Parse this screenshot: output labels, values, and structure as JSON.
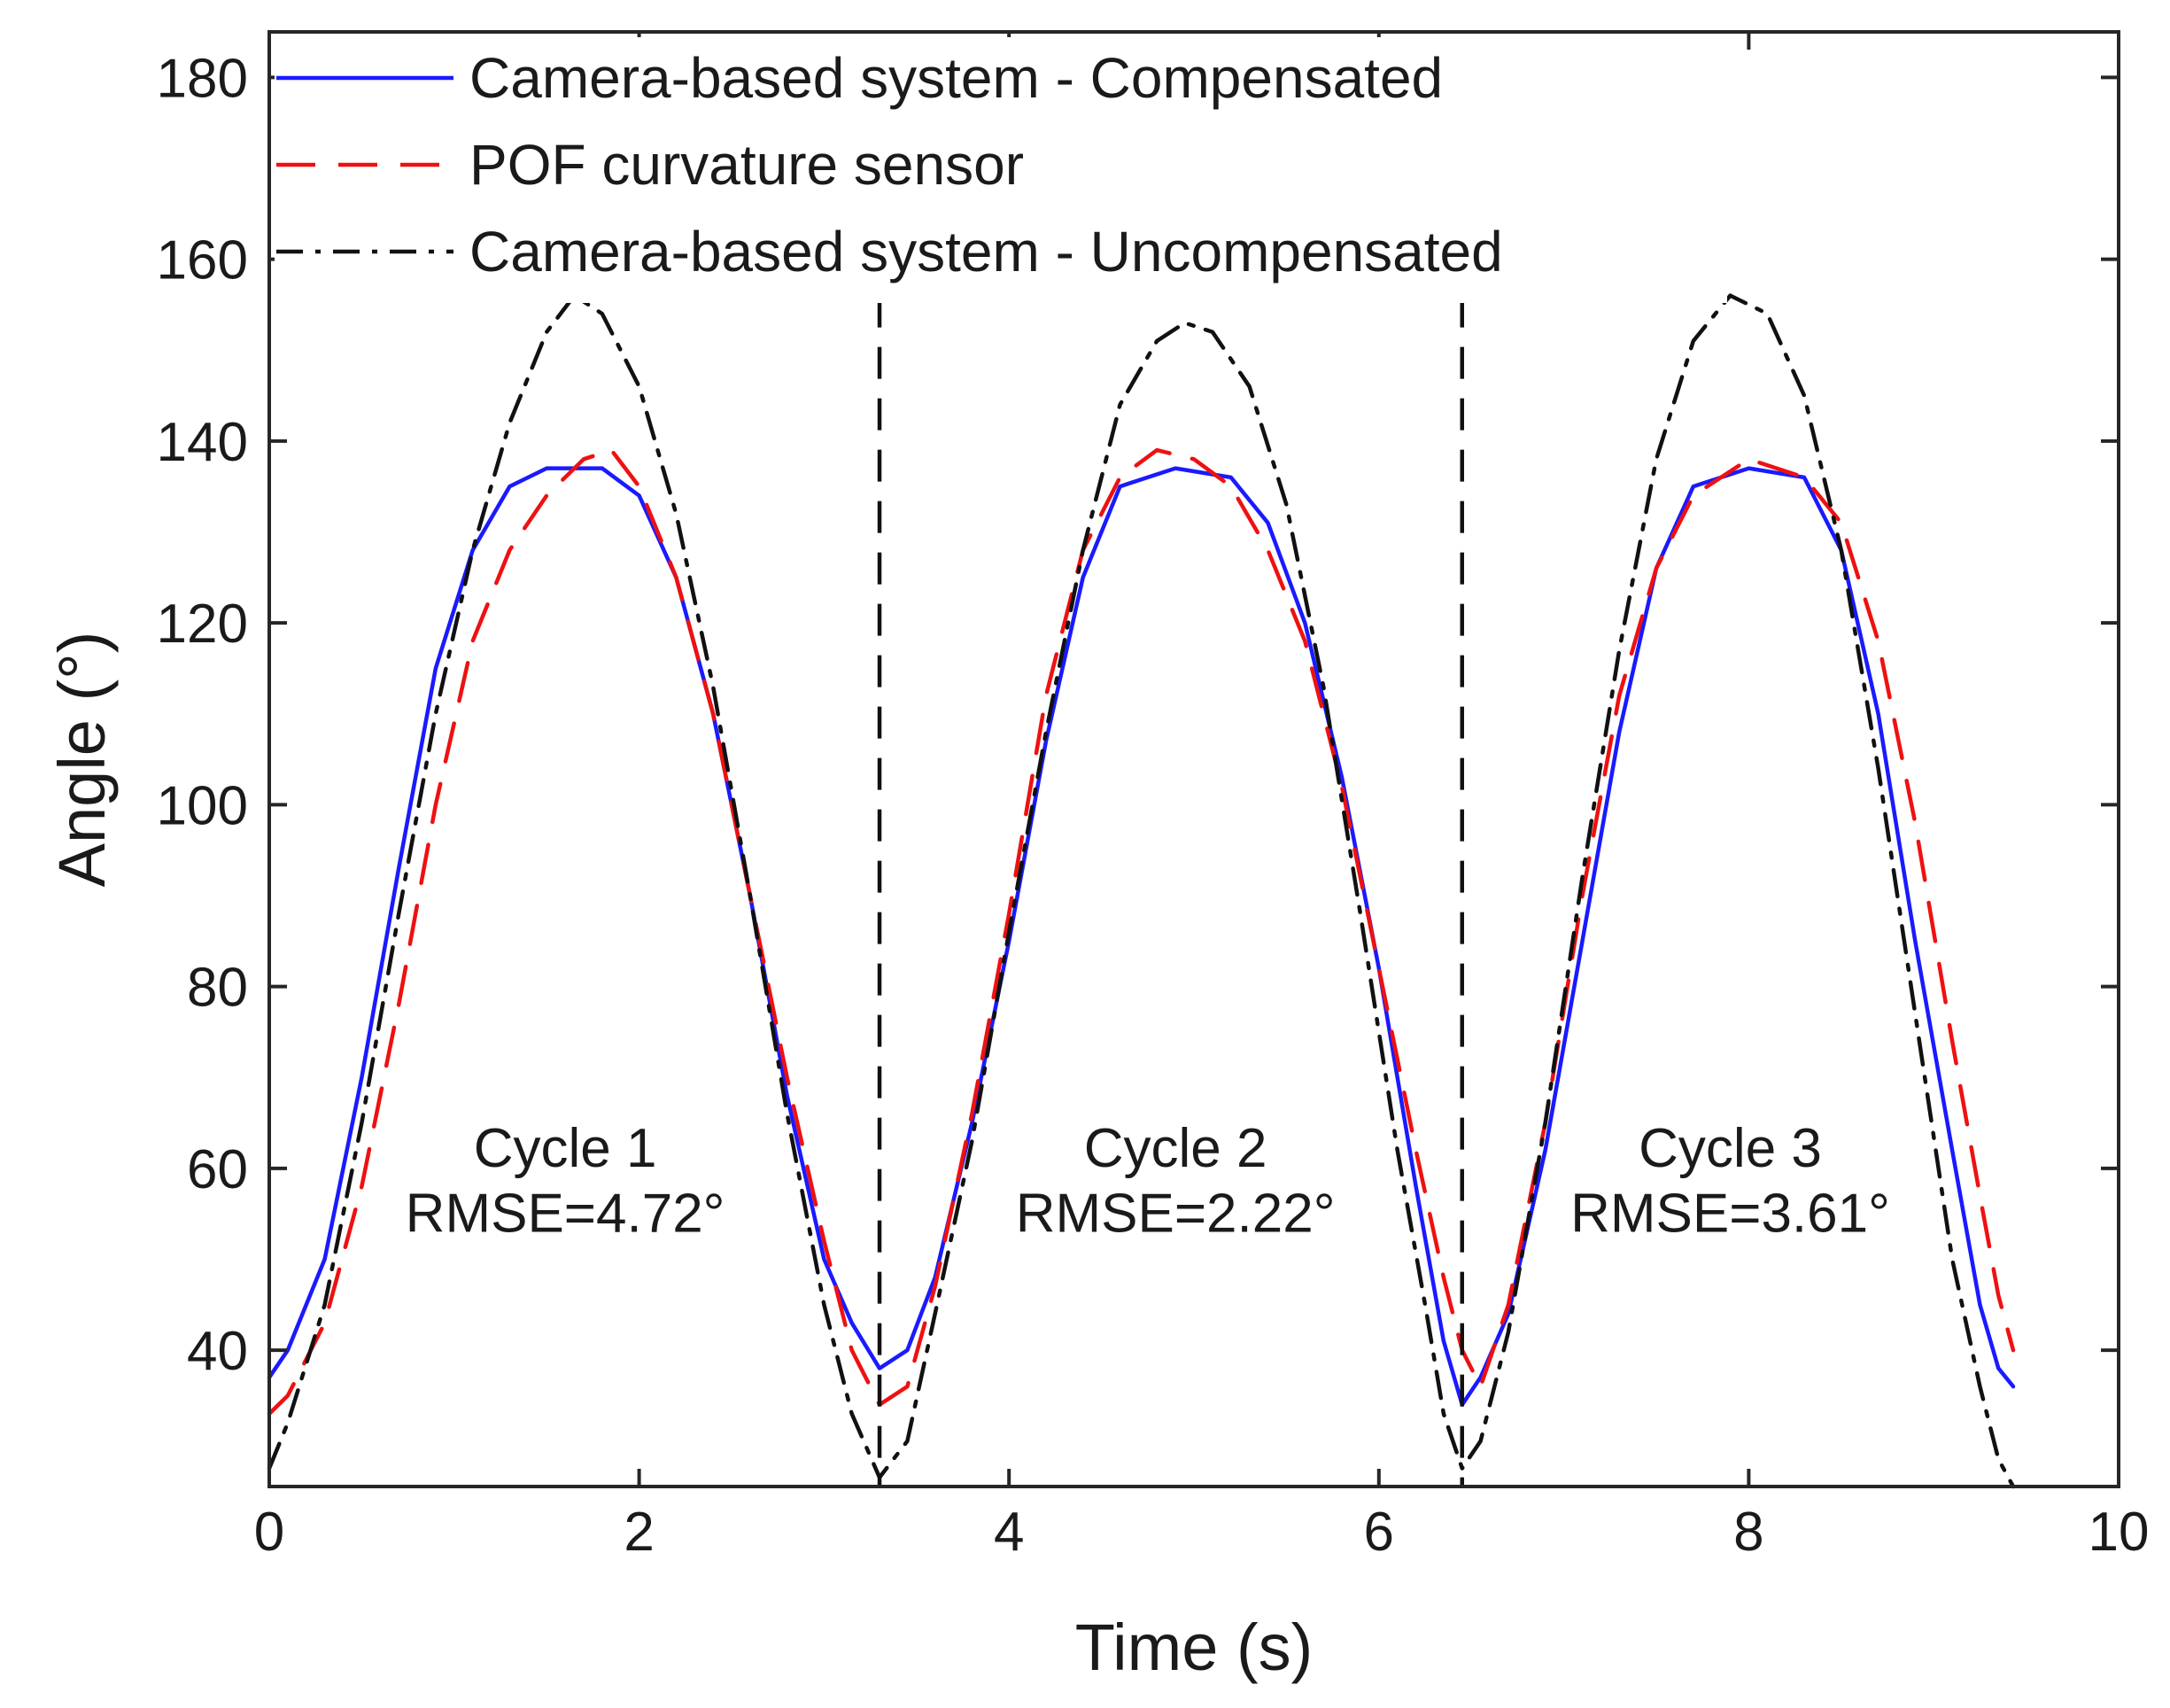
{
  "chart_data": {
    "type": "line",
    "title": "",
    "xlabel": "Time (s)",
    "ylabel": "Angle (°)",
    "xlim": [
      0,
      10
    ],
    "ylim": [
      25,
      185
    ],
    "xticks": [
      0,
      2,
      4,
      6,
      8,
      10
    ],
    "xtick_labels": [
      "0",
      "2",
      "4",
      "6",
      "8",
      "10"
    ],
    "yticks": [
      40,
      60,
      80,
      100,
      120,
      140,
      160,
      180
    ],
    "ytick_labels": [
      "40",
      "60",
      "80",
      "100",
      "120",
      "140",
      "160",
      "180"
    ],
    "grid": false,
    "legend_position": "top-left",
    "series": [
      {
        "name": "Camera-based system - Compensated",
        "color": "#1a1aff",
        "style": "solid",
        "points": [
          [
            0,
            37
          ],
          [
            0.1,
            40
          ],
          [
            0.3,
            50
          ],
          [
            0.5,
            70
          ],
          [
            0.7,
            93
          ],
          [
            0.9,
            115
          ],
          [
            1.1,
            128
          ],
          [
            1.3,
            135
          ],
          [
            1.5,
            137
          ],
          [
            1.8,
            137
          ],
          [
            2.0,
            134
          ],
          [
            2.2,
            125
          ],
          [
            2.4,
            110
          ],
          [
            2.6,
            90
          ],
          [
            2.8,
            68
          ],
          [
            3.0,
            50
          ],
          [
            3.15,
            43
          ],
          [
            3.3,
            38
          ],
          [
            3.45,
            40
          ],
          [
            3.6,
            48
          ],
          [
            3.8,
            65
          ],
          [
            4.0,
            85
          ],
          [
            4.2,
            107
          ],
          [
            4.4,
            125
          ],
          [
            4.6,
            135
          ],
          [
            4.9,
            137
          ],
          [
            5.2,
            136
          ],
          [
            5.4,
            131
          ],
          [
            5.6,
            120
          ],
          [
            5.8,
            103
          ],
          [
            6.0,
            82
          ],
          [
            6.2,
            58
          ],
          [
            6.35,
            41
          ],
          [
            6.45,
            34
          ],
          [
            6.55,
            37
          ],
          [
            6.7,
            44
          ],
          [
            6.9,
            62
          ],
          [
            7.1,
            85
          ],
          [
            7.3,
            108
          ],
          [
            7.5,
            126
          ],
          [
            7.7,
            135
          ],
          [
            8.0,
            137
          ],
          [
            8.3,
            136
          ],
          [
            8.5,
            128
          ],
          [
            8.7,
            110
          ],
          [
            8.9,
            85
          ],
          [
            9.1,
            62
          ],
          [
            9.25,
            45
          ],
          [
            9.35,
            38
          ],
          [
            9.43,
            36
          ]
        ]
      },
      {
        "name": "POF curvature sensor",
        "color": "#ee1111",
        "style": "dashed",
        "points": [
          [
            0,
            33
          ],
          [
            0.1,
            35
          ],
          [
            0.3,
            43
          ],
          [
            0.5,
            58
          ],
          [
            0.7,
            78
          ],
          [
            0.9,
            100
          ],
          [
            1.1,
            118
          ],
          [
            1.3,
            128
          ],
          [
            1.5,
            134
          ],
          [
            1.7,
            138
          ],
          [
            1.85,
            139
          ],
          [
            2.0,
            135
          ],
          [
            2.2,
            125
          ],
          [
            2.4,
            110
          ],
          [
            2.6,
            90
          ],
          [
            2.8,
            70
          ],
          [
            3.0,
            52
          ],
          [
            3.15,
            40
          ],
          [
            3.3,
            34
          ],
          [
            3.45,
            36
          ],
          [
            3.6,
            47
          ],
          [
            3.8,
            66
          ],
          [
            4.0,
            88
          ],
          [
            4.2,
            112
          ],
          [
            4.4,
            128
          ],
          [
            4.6,
            136
          ],
          [
            4.8,
            139
          ],
          [
            5.0,
            138
          ],
          [
            5.2,
            135
          ],
          [
            5.4,
            128
          ],
          [
            5.6,
            118
          ],
          [
            5.8,
            102
          ],
          [
            6.0,
            82
          ],
          [
            6.2,
            62
          ],
          [
            6.35,
            48
          ],
          [
            6.45,
            40
          ],
          [
            6.55,
            36
          ],
          [
            6.7,
            45
          ],
          [
            6.9,
            65
          ],
          [
            7.1,
            90
          ],
          [
            7.3,
            112
          ],
          [
            7.5,
            126
          ],
          [
            7.7,
            134
          ],
          [
            8.0,
            138
          ],
          [
            8.3,
            136
          ],
          [
            8.5,
            131
          ],
          [
            8.7,
            118
          ],
          [
            8.9,
            98
          ],
          [
            9.1,
            74
          ],
          [
            9.25,
            57
          ],
          [
            9.35,
            46
          ],
          [
            9.43,
            40
          ]
        ]
      },
      {
        "name": "Camera-based system - Uncompensated",
        "color": "#111111",
        "style": "dashdot",
        "points": [
          [
            0,
            27
          ],
          [
            0.1,
            32
          ],
          [
            0.3,
            45
          ],
          [
            0.5,
            65
          ],
          [
            0.7,
            88
          ],
          [
            0.9,
            110
          ],
          [
            1.1,
            128
          ],
          [
            1.3,
            142
          ],
          [
            1.5,
            152
          ],
          [
            1.65,
            156
          ],
          [
            1.8,
            154
          ],
          [
            2.0,
            146
          ],
          [
            2.2,
            132
          ],
          [
            2.4,
            113
          ],
          [
            2.6,
            90
          ],
          [
            2.8,
            66
          ],
          [
            3.0,
            45
          ],
          [
            3.15,
            33
          ],
          [
            3.3,
            26
          ],
          [
            3.45,
            30
          ],
          [
            3.6,
            44
          ],
          [
            3.8,
            63
          ],
          [
            4.0,
            86
          ],
          [
            4.2,
            108
          ],
          [
            4.4,
            128
          ],
          [
            4.6,
            144
          ],
          [
            4.8,
            151
          ],
          [
            4.95,
            153
          ],
          [
            5.1,
            152
          ],
          [
            5.3,
            146
          ],
          [
            5.5,
            133
          ],
          [
            5.7,
            113
          ],
          [
            5.9,
            88
          ],
          [
            6.1,
            62
          ],
          [
            6.25,
            45
          ],
          [
            6.35,
            33
          ],
          [
            6.45,
            27
          ],
          [
            6.55,
            30
          ],
          [
            6.7,
            42
          ],
          [
            6.9,
            65
          ],
          [
            7.1,
            92
          ],
          [
            7.3,
            117
          ],
          [
            7.5,
            138
          ],
          [
            7.7,
            151
          ],
          [
            7.9,
            156
          ],
          [
            8.1,
            154
          ],
          [
            8.3,
            145
          ],
          [
            8.5,
            128
          ],
          [
            8.7,
            104
          ],
          [
            8.9,
            77
          ],
          [
            9.1,
            50
          ],
          [
            9.25,
            36
          ],
          [
            9.35,
            28
          ],
          [
            9.43,
            25
          ]
        ]
      }
    ],
    "vlines": [
      3.3,
      6.45
    ],
    "annotations": [
      {
        "cycle": "Cycle 1",
        "rmse": "RMSE=4.72°",
        "x": 1.6,
        "y_cycle": 60.2,
        "y_rmse": 53
      },
      {
        "cycle": "Cycle 2",
        "rmse": "RMSE=2.22°",
        "x": 4.9,
        "y_cycle": 60.2,
        "y_rmse": 53
      },
      {
        "cycle": "Cycle 3",
        "rmse": "RMSE=3.61°",
        "x": 7.9,
        "y_cycle": 60.2,
        "y_rmse": 53
      }
    ]
  }
}
